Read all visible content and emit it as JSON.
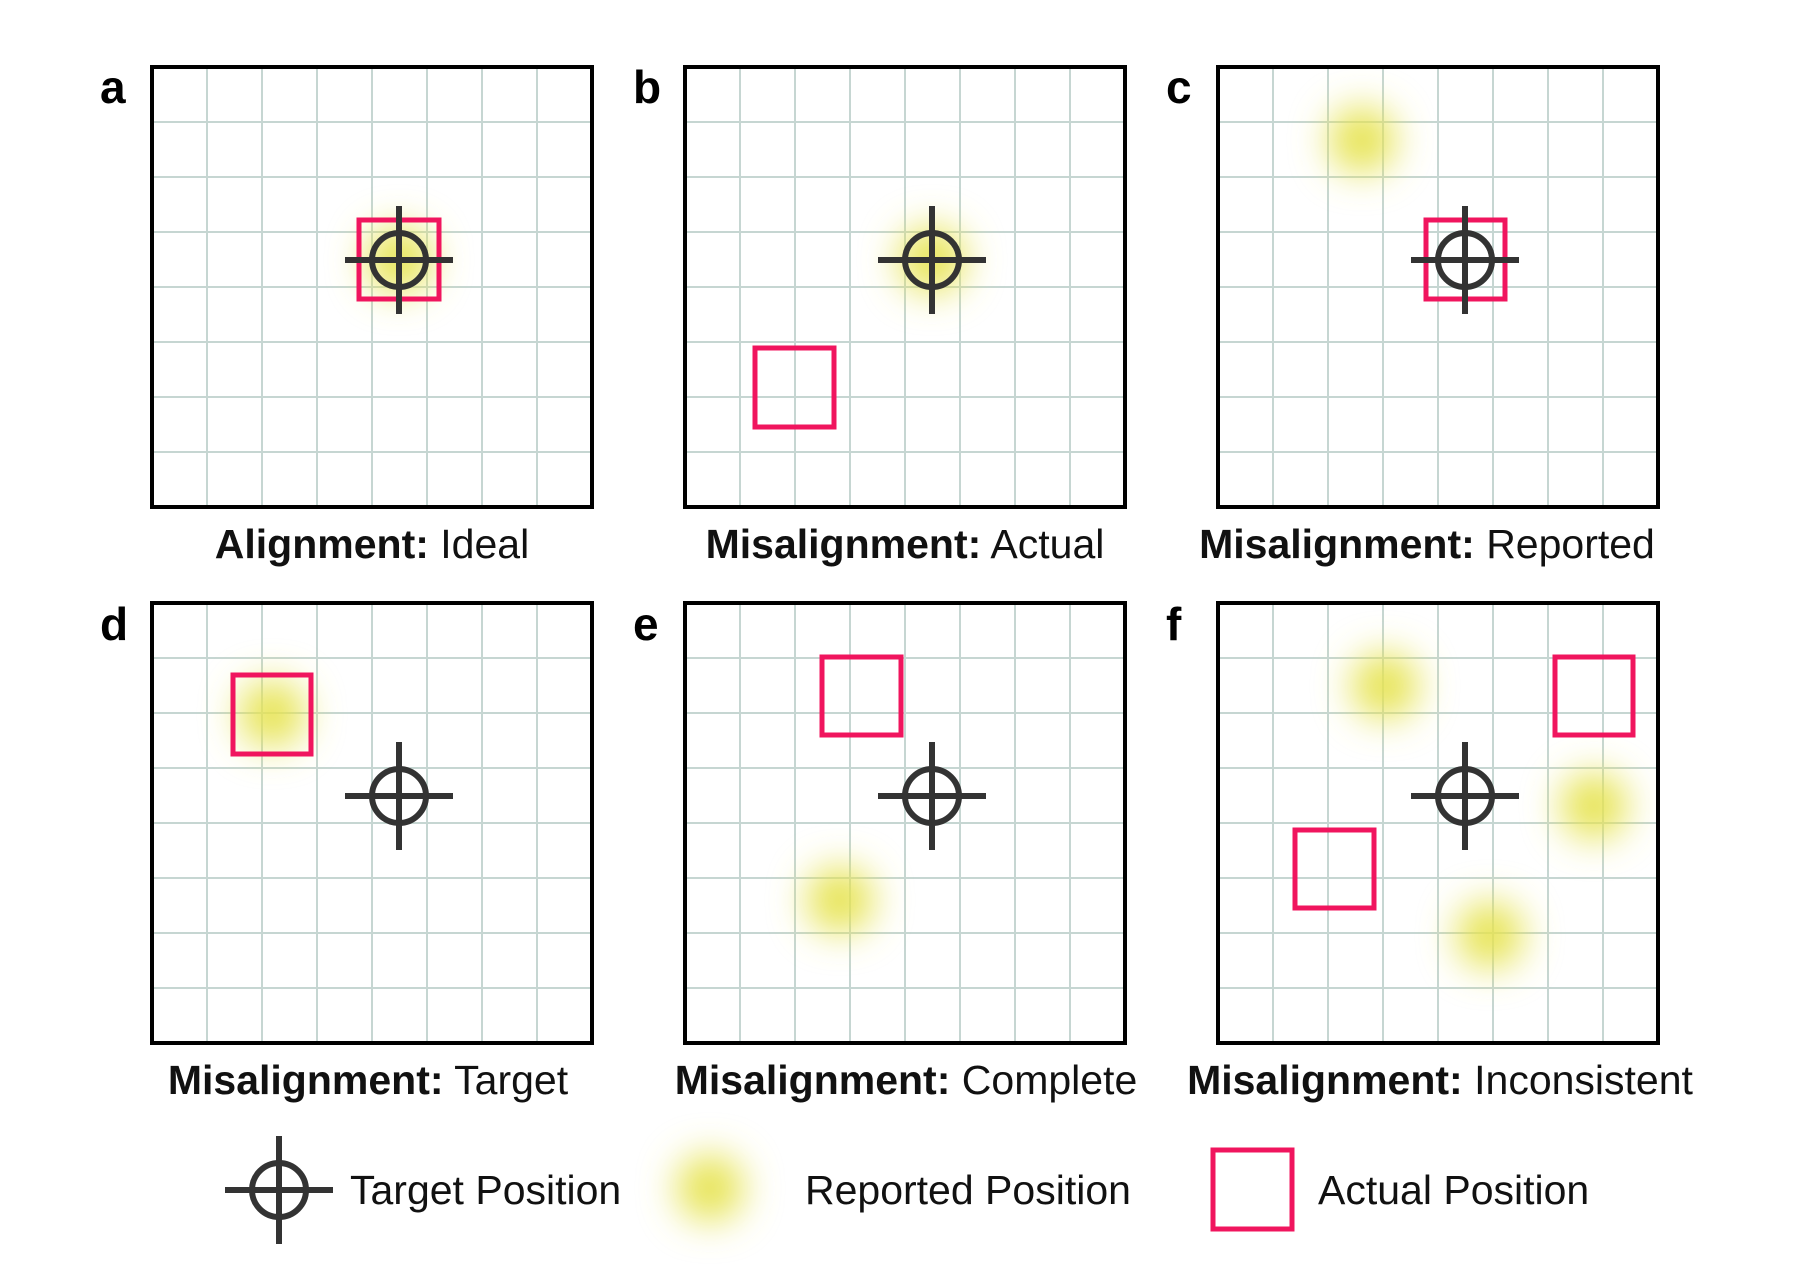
{
  "colors": {
    "target": "#333333",
    "reported": "#e6e34f",
    "actual": "#f0155e",
    "grid": "#c6d6d2",
    "frame": "#000000"
  },
  "panels": [
    {
      "letter": "a",
      "caption_bold": "Alignment:",
      "caption_rest": "Ideal"
    },
    {
      "letter": "b",
      "caption_bold": "Misalignment:",
      "caption_rest": "Actual"
    },
    {
      "letter": "c",
      "caption_bold": "Misalignment:",
      "caption_rest": "Reported"
    },
    {
      "letter": "d",
      "caption_bold": "Misalignment:",
      "caption_rest": "Target"
    },
    {
      "letter": "e",
      "caption_bold": "Misalignment:",
      "caption_rest": "Complete"
    },
    {
      "letter": "f",
      "caption_bold": "Misalignment:",
      "caption_rest": "Inconsistent"
    }
  ],
  "legend": {
    "target": {
      "label": "Target Position",
      "icon": "crosshair-icon"
    },
    "reported": {
      "label": "Reported Position",
      "icon": "blur-dot-icon"
    },
    "actual": {
      "label": "Actual Position",
      "icon": "square-outline-icon"
    }
  }
}
